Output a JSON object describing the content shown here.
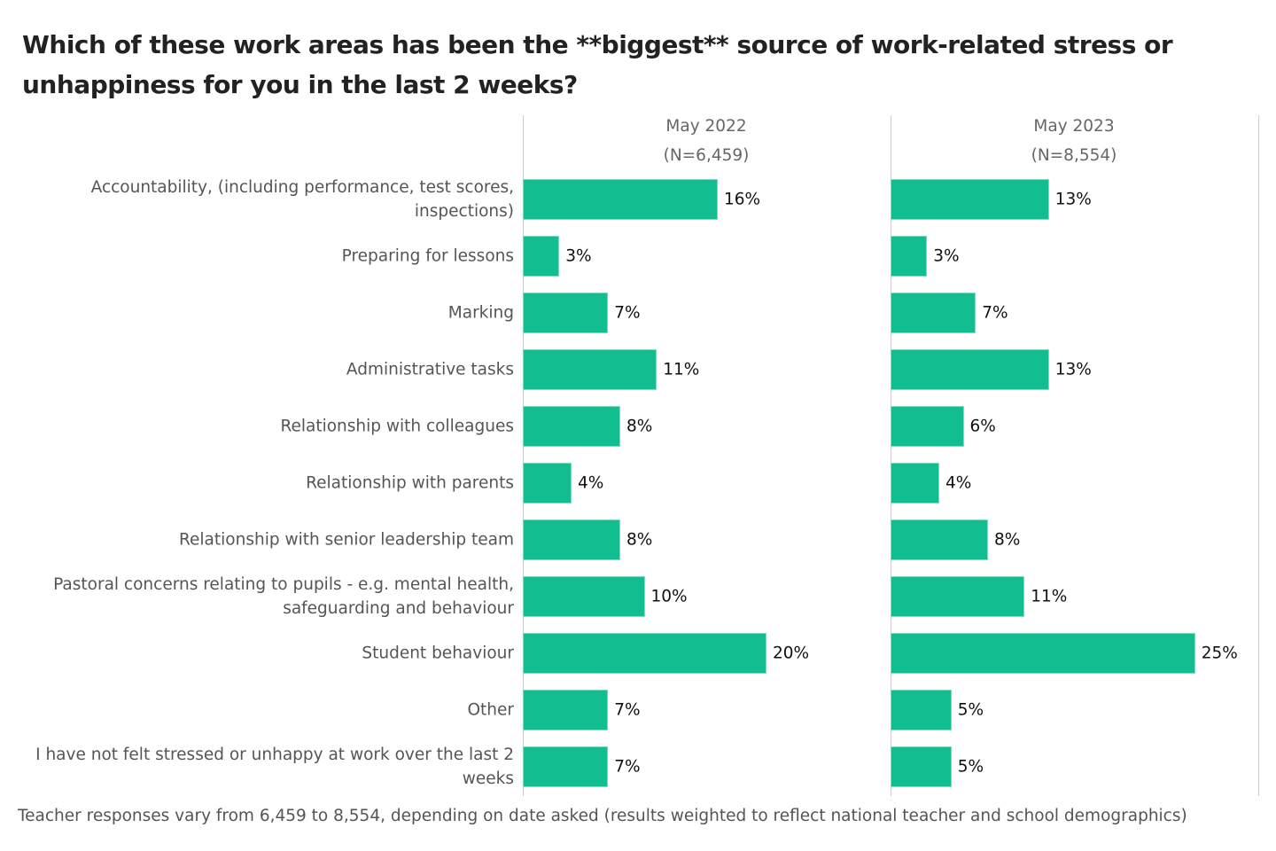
{
  "chart_data": {
    "type": "bar",
    "title": "Which of these work areas has been the **biggest** source of work-related stress or unhappiness for you in the last 2 weeks?",
    "categories": [
      "Accountability, (including performance, test scores, inspections)",
      "Preparing for lessons",
      "Marking",
      "Administrative tasks",
      "Relationship with colleagues",
      "Relationship with parents",
      "Relationship with senior leadership team",
      "Pastoral concerns relating to pupils - e.g. mental health, safeguarding and behaviour",
      "Student behaviour",
      "Other",
      "I have not felt stressed or unhappy at work over the last 2 weeks"
    ],
    "series": [
      {
        "name": "May 2022",
        "sample": "(N=6,459)",
        "color": "#12be8f",
        "values": [
          16,
          3,
          7,
          11,
          8,
          4,
          8,
          10,
          20,
          7,
          7
        ],
        "value_labels": [
          "16%",
          "3%",
          "7%",
          "11%",
          "8%",
          "4%",
          "8%",
          "10%",
          "20%",
          "7%",
          "7%"
        ]
      },
      {
        "name": "May 2023",
        "sample": "(N=8,554)",
        "color": "#12be8f",
        "values": [
          13,
          3,
          7,
          13,
          6,
          4,
          8,
          11,
          25,
          5,
          5
        ],
        "value_labels": [
          "13%",
          "3%",
          "7%",
          "13%",
          "6%",
          "4%",
          "8%",
          "11%",
          "25%",
          "5%",
          "5%"
        ]
      }
    ],
    "note": "Teacher responses vary from 6,459 to 8,554, depending on date asked (results weighted to reflect national teacher and school demographics)"
  }
}
